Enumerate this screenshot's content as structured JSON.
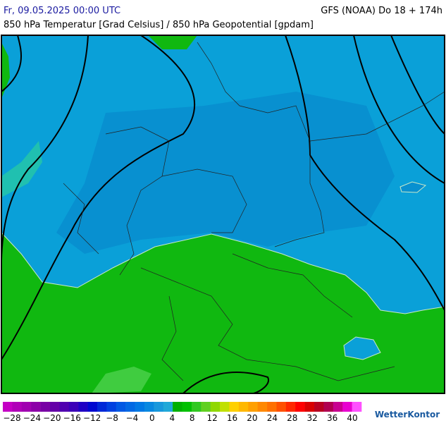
{
  "header": {
    "datetime": "Fr, 09.05.2025 00:00 UTC",
    "model": "GFS (NOAA) Do 18 + 174h",
    "subtitle": "850 hPa Temperatur [Grad Celsius] / 850 hPa Geopotential [gpdam]"
  },
  "legend": {
    "labels": [
      "−28",
      "−24",
      "−20",
      "−16",
      "−12",
      "−8",
      "−4",
      "0",
      "4",
      "8",
      "12",
      "16",
      "20",
      "24",
      "28",
      "32",
      "36",
      "40"
    ],
    "colors": [
      "#c400c4",
      "#b000b8",
      "#a000b0",
      "#8c00a8",
      "#7800a4",
      "#6400a8",
      "#5000b0",
      "#3c00b8",
      "#2000c4",
      "#0008d0",
      "#0028d8",
      "#0040e0",
      "#0058e4",
      "#0068e4",
      "#0078e4",
      "#0888e0",
      "#1898dc",
      "#20a8d8",
      "#00b000",
      "#00c000",
      "#30c820",
      "#60d020",
      "#90d800",
      "#c0e000",
      "#ffd000",
      "#ffb800",
      "#ffa000",
      "#ff8800",
      "#ff7000",
      "#ff5000",
      "#ff2800",
      "#ff0000",
      "#d80000",
      "#b80020",
      "#b00050",
      "#c80090",
      "#e800d0",
      "#ff50ff"
    ]
  },
  "logo": "WetterKontor"
}
